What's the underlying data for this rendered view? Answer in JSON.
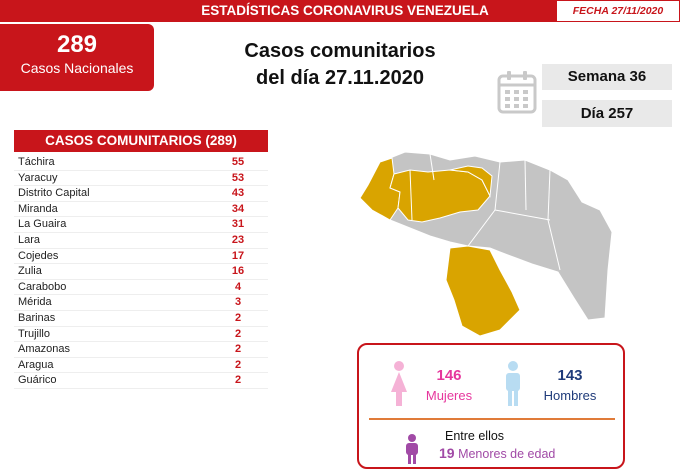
{
  "header": {
    "title": "ESTADÍSTICAS CORONAVIRUS VENEZUELA",
    "date": "FECHA 27/11/2020"
  },
  "national": {
    "count": "289",
    "label": "Casos Nacionales"
  },
  "main_title": {
    "line1": "Casos comunitarios",
    "line2": "del día 27.11.2020"
  },
  "calendar": {
    "week": "Semana 36",
    "day": "Día 257",
    "icon": "calendar-icon"
  },
  "table": {
    "header": "CASOS COMUNITARIOS (289)",
    "rows": [
      {
        "state": "Táchira",
        "cases": "55"
      },
      {
        "state": "Yaracuy",
        "cases": "53"
      },
      {
        "state": "Distrito Capital",
        "cases": "43"
      },
      {
        "state": "Miranda",
        "cases": "34"
      },
      {
        "state": "La Guaira",
        "cases": "31"
      },
      {
        "state": "Lara",
        "cases": "23"
      },
      {
        "state": "Cojedes",
        "cases": "17"
      },
      {
        "state": "Zulia",
        "cases": "16"
      },
      {
        "state": "Carabobo",
        "cases": "4"
      },
      {
        "state": "Mérida",
        "cases": "3"
      },
      {
        "state": "Barinas",
        "cases": "2"
      },
      {
        "state": "Trujillo",
        "cases": "2"
      },
      {
        "state": "Amazonas",
        "cases": "2"
      },
      {
        "state": "Aragua",
        "cases": "2"
      },
      {
        "state": "Guárico",
        "cases": "2"
      }
    ]
  },
  "colors": {
    "brand_red": "#c8151b",
    "map_highlight": "#d9a400",
    "map_base": "#c4c4c4",
    "women": "#e6379d",
    "men": "#1f3b7a",
    "minors": "#a14aa6"
  },
  "gender": {
    "women_count": "146",
    "women_label": "Mujeres",
    "men_count": "143",
    "men_label": "Hombres",
    "among_text": "Entre ellos",
    "minors_count": "19",
    "minors_label": "Menores de edad"
  }
}
